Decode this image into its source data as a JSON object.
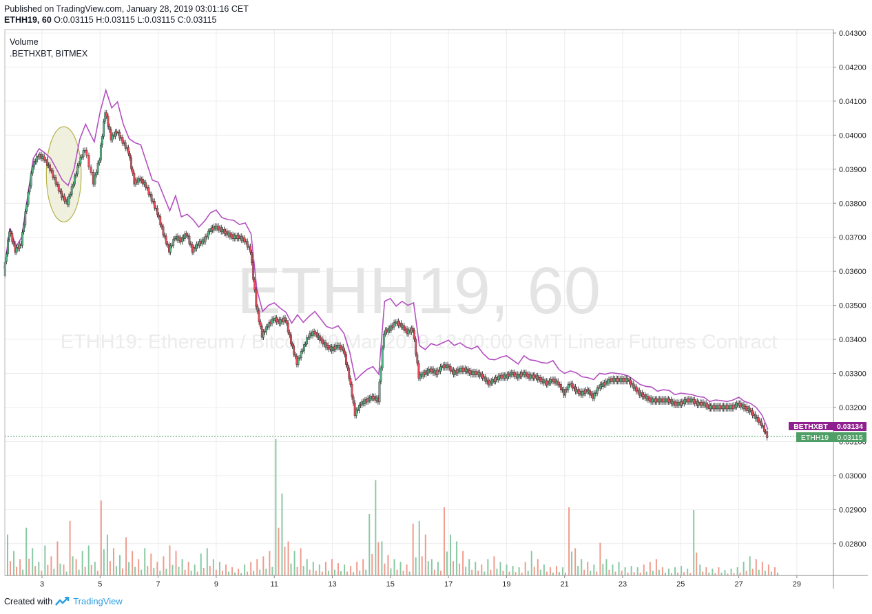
{
  "header": {
    "published": "Published on TradingView.com, January 28, 2019 03:01:16 CET",
    "symbol_interval": "ETHH19, 60",
    "ohlc": [
      {
        "k": "O:",
        "v": "0.03115"
      },
      {
        "k": "H:",
        "v": "0.03115"
      },
      {
        "k": "L:",
        "v": "0.03115"
      },
      {
        "k": "C:",
        "v": "0.03115"
      }
    ]
  },
  "legend": {
    "volume": "Volume",
    "compare": ".BETHXBT, BITMEX"
  },
  "watermark": {
    "big": "ETHH19, 60",
    "small": "ETHH19: Ethereum / Bitcoin 29 Mar 2019 12:00:00 GMT Linear Futures Contract"
  },
  "footer": {
    "created_with": "Created with",
    "brand": "TradingView"
  },
  "colors": {
    "up": "#53b987",
    "down": "#eb4d5c",
    "compare_line": "#b34fc0",
    "vol_up": "#88c9a3",
    "vol_down": "#ef9c8d",
    "grid": "#ececec",
    "annotation_fill": "#ebebd4",
    "annotation_stroke": "#b5b14a",
    "last_label_green": "#4f9e65",
    "last_label_purple": "#8e1f8e"
  },
  "chart_data": {
    "type": "candlestick",
    "price_axis_ticks": [
      "0.04300",
      "0.04200",
      "0.04100",
      "0.04000",
      "0.03900",
      "0.03800",
      "0.03700",
      "0.03600",
      "0.03500",
      "0.03400",
      "0.03300",
      "0.03200",
      "0.03100",
      "0.03000",
      "0.02900",
      "0.02800"
    ],
    "date_axis_ticks": [
      "3",
      "5",
      "7",
      "9",
      "11",
      "13",
      "15",
      "17",
      "19",
      "21",
      "23",
      "25",
      "27",
      "29"
    ],
    "ylim": [
      0.0272,
      0.043
    ],
    "xlim_day": [
      1.6,
      29.8
    ],
    "last_values": [
      {
        "name": "BETHXBT",
        "value": "0.03134"
      },
      {
        "name": "ETHH19",
        "value": "0.03115"
      }
    ],
    "series": [
      {
        "name": "ETHH19",
        "kind": "close",
        "points": [
          [
            1.7,
            0.0359
          ],
          [
            1.9,
            0.0372
          ],
          [
            2.1,
            0.0366
          ],
          [
            2.3,
            0.0368
          ],
          [
            2.5,
            0.038
          ],
          [
            2.7,
            0.0391
          ],
          [
            2.9,
            0.0394
          ],
          [
            3.1,
            0.0393
          ],
          [
            3.3,
            0.039
          ],
          [
            3.5,
            0.0386
          ],
          [
            3.7,
            0.0382
          ],
          [
            3.9,
            0.038
          ],
          [
            4.1,
            0.0386
          ],
          [
            4.3,
            0.0392
          ],
          [
            4.5,
            0.0396
          ],
          [
            4.8,
            0.0386
          ],
          [
            5.0,
            0.0393
          ],
          [
            5.2,
            0.0407
          ],
          [
            5.4,
            0.0399
          ],
          [
            5.6,
            0.0401
          ],
          [
            5.8,
            0.0398
          ],
          [
            6.0,
            0.0395
          ],
          [
            6.2,
            0.0386
          ],
          [
            6.4,
            0.0387
          ],
          [
            6.6,
            0.0385
          ],
          [
            6.8,
            0.0381
          ],
          [
            7.0,
            0.0377
          ],
          [
            7.2,
            0.0371
          ],
          [
            7.4,
            0.0366
          ],
          [
            7.6,
            0.037
          ],
          [
            7.8,
            0.0369
          ],
          [
            8.0,
            0.0371
          ],
          [
            8.2,
            0.0366
          ],
          [
            8.4,
            0.0368
          ],
          [
            8.6,
            0.0369
          ],
          [
            8.8,
            0.0372
          ],
          [
            9.0,
            0.0373
          ],
          [
            9.2,
            0.0372
          ],
          [
            9.4,
            0.0371
          ],
          [
            9.6,
            0.037
          ],
          [
            9.8,
            0.037
          ],
          [
            10.0,
            0.0369
          ],
          [
            10.2,
            0.0366
          ],
          [
            10.4,
            0.035
          ],
          [
            10.6,
            0.0341
          ],
          [
            10.8,
            0.0344
          ],
          [
            11.0,
            0.0346
          ],
          [
            11.2,
            0.0345
          ],
          [
            11.4,
            0.0346
          ],
          [
            11.6,
            0.0339
          ],
          [
            11.8,
            0.0333
          ],
          [
            12.0,
            0.0337
          ],
          [
            12.2,
            0.0341
          ],
          [
            12.4,
            0.0342
          ],
          [
            12.6,
            0.034
          ],
          [
            12.8,
            0.0338
          ],
          [
            13.0,
            0.0337
          ],
          [
            13.2,
            0.0338
          ],
          [
            13.4,
            0.0337
          ],
          [
            13.6,
            0.0329
          ],
          [
            13.8,
            0.0318
          ],
          [
            14.0,
            0.0321
          ],
          [
            14.2,
            0.0322
          ],
          [
            14.4,
            0.0323
          ],
          [
            14.6,
            0.0322
          ],
          [
            14.8,
            0.0342
          ],
          [
            15.0,
            0.0343
          ],
          [
            15.2,
            0.0345
          ],
          [
            15.4,
            0.0344
          ],
          [
            15.6,
            0.0342
          ],
          [
            15.8,
            0.0343
          ],
          [
            16.0,
            0.0329
          ],
          [
            16.2,
            0.033
          ],
          [
            16.4,
            0.0331
          ],
          [
            16.6,
            0.033
          ],
          [
            16.8,
            0.0332
          ],
          [
            17.0,
            0.0332
          ],
          [
            17.2,
            0.033
          ],
          [
            17.4,
            0.0331
          ],
          [
            17.6,
            0.0331
          ],
          [
            17.8,
            0.033
          ],
          [
            18.0,
            0.033
          ],
          [
            18.2,
            0.0329
          ],
          [
            18.4,
            0.0327
          ],
          [
            18.6,
            0.0328
          ],
          [
            18.8,
            0.0329
          ],
          [
            19.0,
            0.0329
          ],
          [
            19.2,
            0.033
          ],
          [
            19.4,
            0.0329
          ],
          [
            19.6,
            0.033
          ],
          [
            19.8,
            0.0329
          ],
          [
            20.0,
            0.0329
          ],
          [
            20.2,
            0.0328
          ],
          [
            20.4,
            0.0327
          ],
          [
            20.6,
            0.0328
          ],
          [
            20.8,
            0.0327
          ],
          [
            21.0,
            0.0324
          ],
          [
            21.2,
            0.0327
          ],
          [
            21.4,
            0.0325
          ],
          [
            21.6,
            0.0324
          ],
          [
            21.8,
            0.0325
          ],
          [
            22.0,
            0.0323
          ],
          [
            22.2,
            0.0326
          ],
          [
            22.4,
            0.0327
          ],
          [
            22.6,
            0.0328
          ],
          [
            22.8,
            0.0328
          ],
          [
            23.0,
            0.0328
          ],
          [
            23.2,
            0.0328
          ],
          [
            23.4,
            0.0326
          ],
          [
            23.6,
            0.0324
          ],
          [
            23.8,
            0.0323
          ],
          [
            24.0,
            0.0322
          ],
          [
            24.2,
            0.0322
          ],
          [
            24.4,
            0.0322
          ],
          [
            24.6,
            0.0322
          ],
          [
            24.8,
            0.0321
          ],
          [
            25.0,
            0.0321
          ],
          [
            25.2,
            0.0322
          ],
          [
            25.4,
            0.0322
          ],
          [
            25.6,
            0.0321
          ],
          [
            25.8,
            0.0321
          ],
          [
            26.0,
            0.032
          ],
          [
            26.2,
            0.032
          ],
          [
            26.4,
            0.032
          ],
          [
            26.6,
            0.032
          ],
          [
            26.8,
            0.032
          ],
          [
            27.0,
            0.0321
          ],
          [
            27.2,
            0.032
          ],
          [
            27.4,
            0.0319
          ],
          [
            27.6,
            0.0317
          ],
          [
            27.8,
            0.0315
          ],
          [
            28.0,
            0.03115
          ]
        ]
      },
      {
        "name": "BETHXBT",
        "kind": "line",
        "points": [
          [
            1.7,
            0.0361
          ],
          [
            1.9,
            0.0373
          ],
          [
            2.1,
            0.0367
          ],
          [
            2.3,
            0.037
          ],
          [
            2.5,
            0.0382
          ],
          [
            2.7,
            0.0393
          ],
          [
            2.9,
            0.0396
          ],
          [
            3.1,
            0.0395
          ],
          [
            3.3,
            0.0393
          ],
          [
            3.5,
            0.039
          ],
          [
            3.7,
            0.0387
          ],
          [
            3.9,
            0.0385
          ],
          [
            4.1,
            0.039
          ],
          [
            4.3,
            0.0399
          ],
          [
            4.5,
            0.0403
          ],
          [
            4.8,
            0.0398
          ],
          [
            5.0,
            0.0407
          ],
          [
            5.2,
            0.0413
          ],
          [
            5.4,
            0.0408
          ],
          [
            5.6,
            0.041
          ],
          [
            5.8,
            0.0403
          ],
          [
            6.0,
            0.0399
          ],
          [
            6.2,
            0.0398
          ],
          [
            6.4,
            0.0397
          ],
          [
            6.6,
            0.0392
          ],
          [
            6.8,
            0.0387
          ],
          [
            7.0,
            0.0386
          ],
          [
            7.2,
            0.0382
          ],
          [
            7.4,
            0.0378
          ],
          [
            7.6,
            0.0382
          ],
          [
            7.8,
            0.0376
          ],
          [
            8.0,
            0.0377
          ],
          [
            8.2,
            0.0375
          ],
          [
            8.4,
            0.0373
          ],
          [
            8.6,
            0.0375
          ],
          [
            8.8,
            0.0377
          ],
          [
            9.0,
            0.0378
          ],
          [
            9.2,
            0.0376
          ],
          [
            9.4,
            0.0375
          ],
          [
            9.6,
            0.0375
          ],
          [
            9.8,
            0.0374
          ],
          [
            10.0,
            0.0374
          ],
          [
            10.2,
            0.0371
          ],
          [
            10.4,
            0.0355
          ],
          [
            10.6,
            0.0348
          ],
          [
            10.8,
            0.035
          ],
          [
            11.0,
            0.0351
          ],
          [
            11.2,
            0.0349
          ],
          [
            11.4,
            0.0348
          ],
          [
            11.6,
            0.0345
          ],
          [
            11.8,
            0.0347
          ],
          [
            12.0,
            0.0345
          ],
          [
            12.2,
            0.0347
          ],
          [
            12.4,
            0.0348
          ],
          [
            12.6,
            0.0346
          ],
          [
            12.8,
            0.0344
          ],
          [
            13.0,
            0.0343
          ],
          [
            13.2,
            0.0344
          ],
          [
            13.4,
            0.0342
          ],
          [
            13.6,
            0.0336
          ],
          [
            13.8,
            0.0328
          ],
          [
            14.0,
            0.033
          ],
          [
            14.2,
            0.0331
          ],
          [
            14.4,
            0.0332
          ],
          [
            14.6,
            0.033
          ],
          [
            14.8,
            0.0351
          ],
          [
            15.0,
            0.0352
          ],
          [
            15.2,
            0.035
          ],
          [
            15.4,
            0.0351
          ],
          [
            15.6,
            0.035
          ],
          [
            15.8,
            0.0351
          ],
          [
            16.0,
            0.0338
          ],
          [
            16.2,
            0.0337
          ],
          [
            16.4,
            0.0339
          ],
          [
            16.6,
            0.0338
          ],
          [
            16.8,
            0.0339
          ],
          [
            17.0,
            0.034
          ],
          [
            17.2,
            0.0338
          ],
          [
            17.4,
            0.0339
          ],
          [
            17.6,
            0.0338
          ],
          [
            17.8,
            0.0337
          ],
          [
            18.0,
            0.0338
          ],
          [
            18.2,
            0.0336
          ],
          [
            18.4,
            0.0334
          ],
          [
            18.6,
            0.0334
          ],
          [
            18.8,
            0.0335
          ],
          [
            19.0,
            0.0335
          ],
          [
            19.2,
            0.0334
          ],
          [
            19.4,
            0.0333
          ],
          [
            19.6,
            0.0335
          ],
          [
            19.8,
            0.0334
          ],
          [
            20.0,
            0.0334
          ],
          [
            20.2,
            0.0333
          ],
          [
            20.4,
            0.0333
          ],
          [
            20.6,
            0.0334
          ],
          [
            20.8,
            0.0331
          ],
          [
            21.0,
            0.033
          ],
          [
            21.2,
            0.0331
          ],
          [
            21.4,
            0.033
          ],
          [
            21.6,
            0.0329
          ],
          [
            21.8,
            0.0329
          ],
          [
            22.0,
            0.0328
          ],
          [
            22.2,
            0.033
          ],
          [
            22.4,
            0.033
          ],
          [
            22.6,
            0.033
          ],
          [
            22.8,
            0.033
          ],
          [
            23.0,
            0.033
          ],
          [
            23.2,
            0.0329
          ],
          [
            23.4,
            0.0328
          ],
          [
            23.6,
            0.0327
          ],
          [
            23.8,
            0.0326
          ],
          [
            24.0,
            0.0326
          ],
          [
            24.2,
            0.0325
          ],
          [
            24.4,
            0.0325
          ],
          [
            24.6,
            0.0325
          ],
          [
            24.8,
            0.0324
          ],
          [
            25.0,
            0.0324
          ],
          [
            25.2,
            0.0324
          ],
          [
            25.4,
            0.0324
          ],
          [
            25.6,
            0.0323
          ],
          [
            25.8,
            0.0323
          ],
          [
            26.0,
            0.0322
          ],
          [
            26.2,
            0.0322
          ],
          [
            26.4,
            0.0322
          ],
          [
            26.6,
            0.0322
          ],
          [
            26.8,
            0.0322
          ],
          [
            27.0,
            0.0323
          ],
          [
            27.2,
            0.0322
          ],
          [
            27.4,
            0.0321
          ],
          [
            27.6,
            0.032
          ],
          [
            27.8,
            0.0318
          ],
          [
            28.0,
            0.03134
          ]
        ]
      }
    ],
    "volume_relative": [
      0.3,
      0.18,
      0.12,
      0.35,
      0.2,
      0.1,
      0.22,
      0.14,
      0.25,
      0.08,
      0.4,
      0.12,
      0.18,
      0.22,
      0.1,
      0.55,
      0.3,
      0.2,
      0.15,
      0.28,
      0.18,
      0.12,
      0.2,
      0.16,
      0.1,
      0.14,
      0.22,
      0.18,
      0.12,
      0.1,
      0.08,
      0.16,
      0.2,
      0.12,
      0.1,
      0.08,
      0.06,
      0.05,
      0.08,
      0.1,
      0.12,
      0.14,
      0.18,
      1.0,
      0.6,
      0.25,
      0.18,
      0.2,
      0.12,
      0.1,
      0.08,
      0.1,
      0.12,
      0.09,
      0.08,
      0.07,
      0.1,
      0.12,
      0.45,
      0.7,
      0.25,
      0.15,
      0.12,
      0.1,
      0.08,
      0.38,
      0.4,
      0.3,
      0.12,
      0.1,
      0.5,
      0.3,
      0.25,
      0.18,
      0.12,
      0.1,
      0.08,
      0.12,
      0.14,
      0.1,
      0.08,
      0.07,
      0.06,
      0.1,
      0.18,
      0.12,
      0.08,
      0.06,
      0.07,
      0.06,
      0.5,
      0.2,
      0.12,
      0.1,
      0.08,
      0.24,
      0.12,
      0.08,
      0.1,
      0.06,
      0.07,
      0.06,
      0.08,
      0.1,
      0.12,
      0.06,
      0.05,
      0.06,
      0.07,
      0.05,
      0.48,
      0.08,
      0.06,
      0.05,
      0.06,
      0.04,
      0.05,
      0.06,
      0.1,
      0.14,
      0.12,
      0.1,
      0.08,
      0.06
    ],
    "annotation": {
      "shape": "ellipse",
      "day_center": 3.75,
      "price_center": 0.03885,
      "day_radius": 0.6,
      "price_radius": 0.0014
    }
  }
}
